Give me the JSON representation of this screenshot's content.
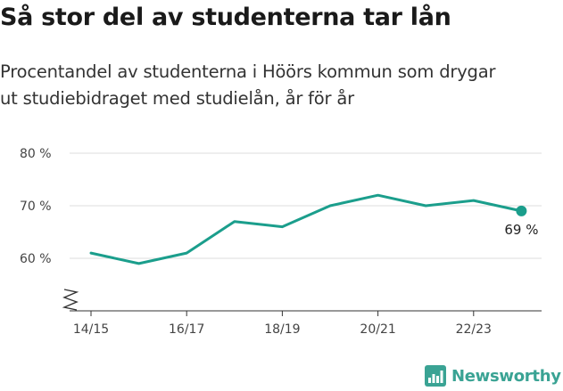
{
  "header": {
    "title": "Så stor del av studenterna tar lån",
    "subtitle_line1": "Procentandel av studenterna i Höörs kommun som drygar",
    "subtitle_line2": "ut studiebidraget med studielån, år för år"
  },
  "brand": {
    "name": "Newsworthy",
    "icon": "newsworthy-logo-icon",
    "color": "#3aa394"
  },
  "colors": {
    "line": "#1b9e8c",
    "grid": "#dddddd",
    "axis": "#333333"
  },
  "chart_data": {
    "type": "line",
    "title": "",
    "xlabel": "",
    "ylabel": "",
    "x_ticks": [
      "14/15",
      "16/17",
      "18/19",
      "20/21",
      "22/23"
    ],
    "y_ticks": [
      "60 %",
      "70 %",
      "80 %"
    ],
    "ylim": [
      50,
      80
    ],
    "y_axis_break": true,
    "grid": true,
    "series": [
      {
        "x": [
          "14/15",
          "15/16",
          "16/17",
          "17/18",
          "18/19",
          "19/20",
          "20/21",
          "21/22",
          "22/23",
          "23/24"
        ],
        "values": [
          61,
          59,
          61,
          67,
          66,
          70,
          72,
          70,
          71,
          69
        ]
      }
    ],
    "end_label": "69 %"
  }
}
